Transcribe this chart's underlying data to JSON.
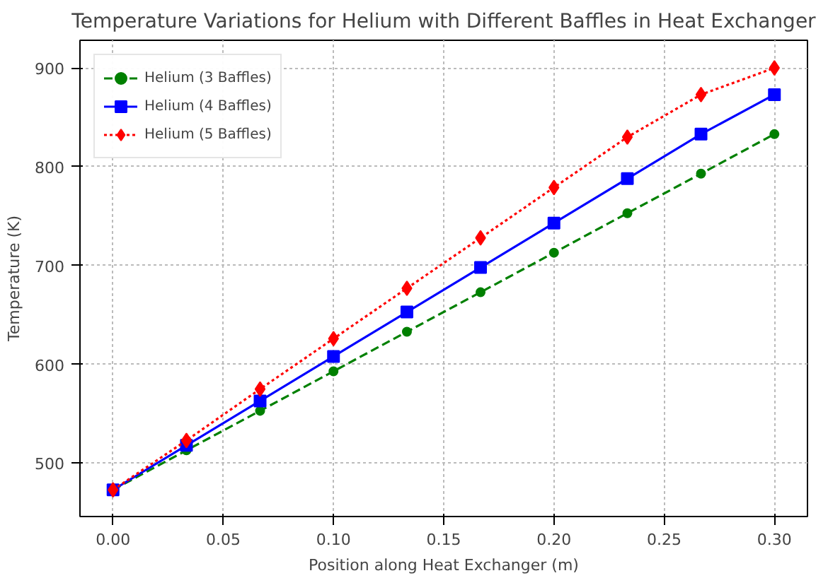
{
  "chart_data": {
    "type": "line",
    "title": "Temperature Variations for Helium with Different Baffles in Heat Exchanger",
    "xlabel": "Position along Heat Exchanger (m)",
    "ylabel": "Temperature (K)",
    "x": [
      0,
      0.0333,
      0.0667,
      0.1,
      0.1333,
      0.1667,
      0.2,
      0.2333,
      0.2667,
      0.3
    ],
    "xlim": [
      -0.015,
      0.315
    ],
    "ylim": [
      446,
      928
    ],
    "xticks": [
      {
        "value": 0,
        "label": "0.00"
      },
      {
        "value": 0.05,
        "label": "0.05"
      },
      {
        "value": 0.1,
        "label": "0.10"
      },
      {
        "value": 0.15,
        "label": "0.15"
      },
      {
        "value": 0.2,
        "label": "0.20"
      },
      {
        "value": 0.25,
        "label": "0.25"
      },
      {
        "value": 0.3,
        "label": "0.30"
      }
    ],
    "yticks": [
      500,
      600,
      700,
      800,
      900
    ],
    "grid": true,
    "legend": "top left",
    "series": [
      {
        "name": "Helium (3 Baffles)",
        "color": "#008000",
        "marker": "circle",
        "line_style": "dashed",
        "values": [
          473,
          513,
          553,
          593,
          633,
          673,
          713,
          753,
          793,
          833
        ]
      },
      {
        "name": "Helium (4 Baffles)",
        "color": "#0000ff",
        "marker": "square",
        "line_style": "solid",
        "values": [
          473,
          518,
          563,
          608,
          653,
          698,
          743,
          788,
          833,
          873
        ]
      },
      {
        "name": "Helium (5 Baffles)",
        "color": "#ff0000",
        "marker": "diamond",
        "line_style": "dotted",
        "values": [
          473,
          523,
          575,
          626,
          677,
          728,
          779,
          830,
          873,
          900
        ]
      }
    ]
  }
}
